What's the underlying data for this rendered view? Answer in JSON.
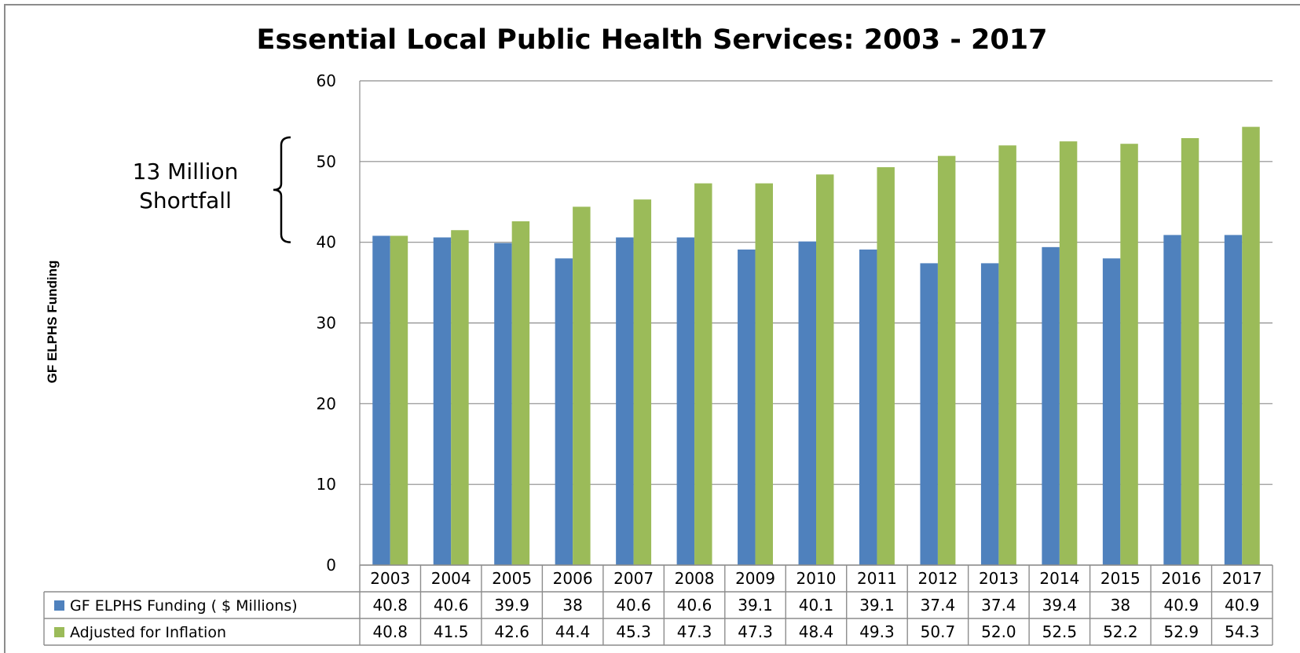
{
  "chart_data": {
    "type": "bar",
    "title": "Essential Local Public Health Services: 2003 - 2017",
    "ylabel": "GF ELPHS Funding",
    "xlabel": "",
    "ylim": [
      0,
      60
    ],
    "yticks": [
      0,
      10,
      20,
      30,
      40,
      50,
      60
    ],
    "grid": true,
    "legend": "data-table-left",
    "categories": [
      "2003",
      "2004",
      "2005",
      "2006",
      "2007",
      "2008",
      "2009",
      "2010",
      "2011",
      "2012",
      "2013",
      "2014",
      "2015",
      "2016",
      "2017"
    ],
    "series": [
      {
        "name": "GF ELPHS Funding ( $ Millions)",
        "color": "#4F81BD",
        "values": [
          40.8,
          40.6,
          39.9,
          38,
          40.6,
          40.6,
          39.1,
          40.1,
          39.1,
          37.4,
          37.4,
          39.4,
          38,
          40.9,
          40.9
        ],
        "labels": [
          "40.8",
          "40.6",
          "39.9",
          "38",
          "40.6",
          "40.6",
          "39.1",
          "40.1",
          "39.1",
          "37.4",
          "37.4",
          "39.4",
          "38",
          "40.9",
          "40.9"
        ]
      },
      {
        "name": "Adjusted for Inflation",
        "color": "#9BBB59",
        "values": [
          40.8,
          41.5,
          42.6,
          44.4,
          45.3,
          47.3,
          47.3,
          48.4,
          49.3,
          50.7,
          52.0,
          52.5,
          52.2,
          52.9,
          54.3
        ],
        "labels": [
          "40.8",
          "41.5",
          "42.6",
          "44.4",
          "45.3",
          "47.3",
          "47.3",
          "48.4",
          "49.3",
          "50.7",
          "52.0",
          "52.5",
          "52.2",
          "52.9",
          "54.3"
        ]
      }
    ],
    "annotation": {
      "lines": [
        "13 Million",
        "Shortfall"
      ],
      "bracket_from": 40,
      "bracket_to": 53
    }
  }
}
